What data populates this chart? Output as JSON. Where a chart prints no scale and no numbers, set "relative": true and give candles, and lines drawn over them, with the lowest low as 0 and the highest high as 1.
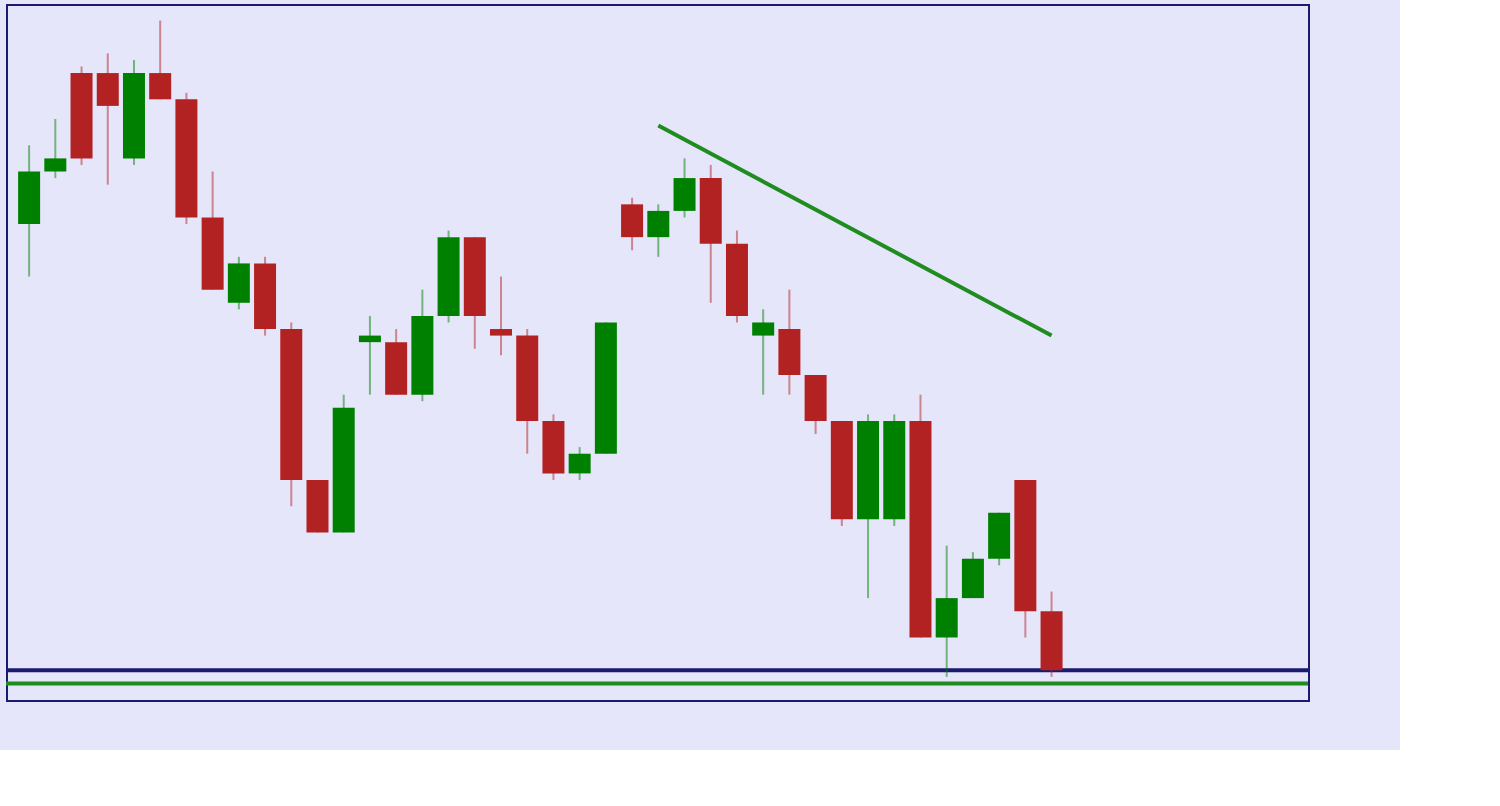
{
  "chart_data": {
    "type": "candlestick",
    "relative": true,
    "tick_labels": false,
    "grid": false,
    "categories": [
      null,
      null,
      null,
      null,
      null,
      null,
      null,
      null,
      null,
      null,
      null,
      null,
      null,
      null,
      null,
      null,
      null,
      null,
      null,
      null,
      null,
      null,
      null,
      null,
      null,
      null,
      null,
      null,
      null,
      null,
      null,
      null,
      null,
      null,
      null,
      null,
      null,
      null,
      null,
      null
    ],
    "colors": [
      "#008000",
      "#008000",
      "#b22222",
      "#b22222",
      "#008000",
      "#b22222",
      "#b22222",
      "#b22222",
      "#008000",
      "#b22222",
      "#b22222",
      "#b22222",
      "#008000",
      "#008000",
      "#b22222",
      "#008000",
      "#008000",
      "#b22222",
      "#b22222",
      "#b22222",
      "#b22222",
      "#008000",
      "#008000",
      "#b22222",
      "#008000",
      "#008000",
      "#b22222",
      "#b22222",
      "#008000",
      "#b22222",
      "#b22222",
      "#b22222",
      "#008000",
      "#008000",
      "#b22222",
      "#008000",
      "#008000",
      "#008000",
      "#b22222",
      "#b22222"
    ],
    "ohlc": [
      [
        0.69,
        0.81,
        0.61,
        0.77
      ],
      [
        0.77,
        0.85,
        0.76,
        0.79
      ],
      [
        0.92,
        0.93,
        0.78,
        0.79
      ],
      [
        0.92,
        0.95,
        0.75,
        0.87
      ],
      [
        0.79,
        0.94,
        0.78,
        0.92
      ],
      [
        0.92,
        1.0,
        0.88,
        0.88
      ],
      [
        0.88,
        0.89,
        0.69,
        0.7
      ],
      [
        0.7,
        0.77,
        0.59,
        0.59
      ],
      [
        0.57,
        0.64,
        0.56,
        0.63
      ],
      [
        0.63,
        0.64,
        0.52,
        0.53
      ],
      [
        0.53,
        0.54,
        0.26,
        0.3
      ],
      [
        0.3,
        0.3,
        0.22,
        0.22
      ],
      [
        0.22,
        0.43,
        0.22,
        0.41
      ],
      [
        0.51,
        0.55,
        0.43,
        0.52
      ],
      [
        0.51,
        0.53,
        0.43,
        0.43
      ],
      [
        0.43,
        0.59,
        0.42,
        0.55
      ],
      [
        0.55,
        0.68,
        0.54,
        0.67
      ],
      [
        0.67,
        0.67,
        0.5,
        0.55
      ],
      [
        0.53,
        0.61,
        0.49,
        0.52
      ],
      [
        0.52,
        0.53,
        0.34,
        0.39
      ],
      [
        0.39,
        0.4,
        0.3,
        0.31
      ],
      [
        0.31,
        0.35,
        0.3,
        0.34
      ],
      [
        0.34,
        0.54,
        0.34,
        0.54
      ],
      [
        0.72,
        0.73,
        0.65,
        0.67
      ],
      [
        0.67,
        0.72,
        0.64,
        0.71
      ],
      [
        0.71,
        0.79,
        0.7,
        0.76
      ],
      [
        0.76,
        0.78,
        0.57,
        0.66
      ],
      [
        0.66,
        0.68,
        0.54,
        0.55
      ],
      [
        0.52,
        0.56,
        0.43,
        0.54
      ],
      [
        0.53,
        0.59,
        0.43,
        0.46
      ],
      [
        0.46,
        0.46,
        0.37,
        0.39
      ],
      [
        0.39,
        0.39,
        0.23,
        0.24
      ],
      [
        0.24,
        0.4,
        0.12,
        0.39
      ],
      [
        0.24,
        0.4,
        0.23,
        0.39
      ],
      [
        0.39,
        0.43,
        0.06,
        0.06
      ],
      [
        0.06,
        0.2,
        0.0,
        0.12
      ],
      [
        0.12,
        0.19,
        0.12,
        0.18
      ],
      [
        0.18,
        0.25,
        0.17,
        0.25
      ],
      [
        0.3,
        0.3,
        0.06,
        0.1
      ],
      [
        0.1,
        0.13,
        0.0,
        0.01
      ]
    ],
    "series": [
      {
        "type": "line",
        "color": "#1e8c1e",
        "values": [
          null,
          null,
          null,
          null,
          null,
          null,
          null,
          null,
          null,
          null,
          null,
          null,
          null,
          null,
          null,
          null,
          null,
          null,
          null,
          null,
          null,
          null,
          null,
          null,
          0.84,
          null,
          null,
          null,
          null,
          null,
          null,
          null,
          null,
          null,
          null,
          null,
          null,
          null,
          null,
          0.52
        ]
      }
    ],
    "ref_lines": [
      {
        "axis": "y",
        "value": 0.01,
        "color": "#1a1a6e"
      },
      {
        "axis": "y",
        "value": -0.01,
        "color": "#1e8c1e"
      }
    ]
  }
}
